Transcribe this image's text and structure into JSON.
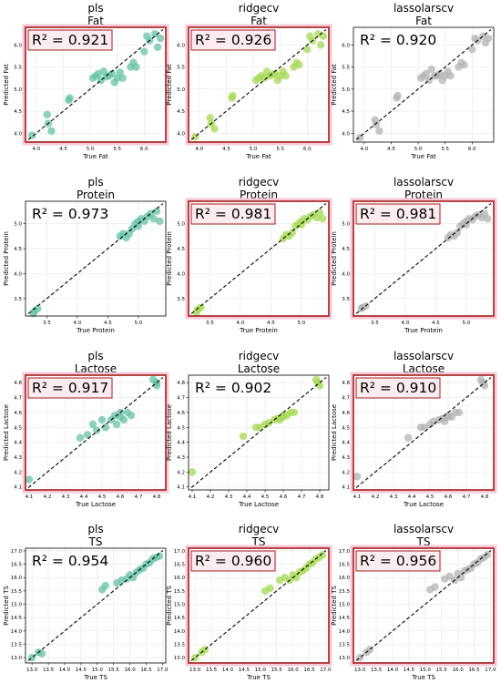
{
  "chart_data": [
    {
      "model": "pls",
      "target": "Fat",
      "type": "scatter",
      "xlabel": "True Fat",
      "ylabel": "Predicted Fat",
      "xlim": [
        3.8,
        6.4
      ],
      "ylim": [
        3.8,
        6.4
      ],
      "xticks": [
        4.0,
        4.5,
        5.0,
        5.5,
        6.0
      ],
      "yticks": [
        4.0,
        4.5,
        5.0,
        5.5,
        6.0
      ],
      "r2_label": "R² = 0.921",
      "highlighted": true,
      "color": "#66c2a5",
      "points": [
        [
          3.92,
          3.95
        ],
        [
          4.2,
          4.42
        ],
        [
          4.22,
          4.22
        ],
        [
          4.28,
          4.05
        ],
        [
          4.6,
          4.75
        ],
        [
          4.62,
          4.8
        ],
        [
          5.05,
          5.25
        ],
        [
          5.1,
          5.3
        ],
        [
          5.15,
          5.35
        ],
        [
          5.2,
          5.2
        ],
        [
          5.25,
          5.4
        ],
        [
          5.3,
          5.28
        ],
        [
          5.35,
          5.3
        ],
        [
          5.4,
          5.35
        ],
        [
          5.45,
          5.15
        ],
        [
          5.5,
          5.25
        ],
        [
          5.55,
          5.38
        ],
        [
          5.6,
          5.25
        ],
        [
          5.75,
          5.5
        ],
        [
          5.8,
          5.6
        ],
        [
          5.85,
          5.5
        ],
        [
          6.0,
          5.85
        ],
        [
          6.05,
          6.2
        ],
        [
          6.1,
          6.1
        ],
        [
          6.2,
          6.25
        ],
        [
          6.25,
          5.95
        ],
        [
          6.3,
          6.15
        ]
      ]
    },
    {
      "model": "ridgecv",
      "target": "Fat",
      "type": "scatter",
      "xlabel": "True Fat",
      "ylabel": "Predicted Fat",
      "xlim": [
        3.8,
        6.4
      ],
      "ylim": [
        3.8,
        6.4
      ],
      "xticks": [
        4.0,
        4.5,
        5.0,
        5.5,
        6.0
      ],
      "yticks": [
        4.0,
        4.5,
        5.0,
        5.5,
        6.0
      ],
      "r2_label": "R² = 0.926",
      "highlighted": true,
      "color": "#a6d854",
      "points": [
        [
          3.92,
          3.92
        ],
        [
          4.2,
          4.35
        ],
        [
          4.22,
          4.22
        ],
        [
          4.28,
          4.1
        ],
        [
          4.6,
          4.8
        ],
        [
          4.62,
          4.85
        ],
        [
          5.05,
          5.2
        ],
        [
          5.1,
          5.25
        ],
        [
          5.15,
          5.3
        ],
        [
          5.2,
          5.25
        ],
        [
          5.25,
          5.4
        ],
        [
          5.3,
          5.3
        ],
        [
          5.35,
          5.32
        ],
        [
          5.4,
          5.35
        ],
        [
          5.45,
          5.2
        ],
        [
          5.5,
          5.3
        ],
        [
          5.55,
          5.4
        ],
        [
          5.6,
          5.3
        ],
        [
          5.75,
          5.5
        ],
        [
          5.8,
          5.6
        ],
        [
          5.85,
          5.55
        ],
        [
          6.0,
          5.9
        ],
        [
          6.05,
          6.2
        ],
        [
          6.1,
          6.1
        ],
        [
          6.2,
          6.25
        ],
        [
          6.25,
          6.0
        ],
        [
          6.3,
          6.2
        ]
      ]
    },
    {
      "model": "lassolarscv",
      "target": "Fat",
      "type": "scatter",
      "xlabel": "True Fat",
      "ylabel": "Predicted Fat",
      "xlim": [
        3.8,
        6.4
      ],
      "ylim": [
        3.8,
        6.4
      ],
      "xticks": [
        4.0,
        4.5,
        5.0,
        5.5,
        6.0
      ],
      "yticks": [
        4.0,
        4.5,
        5.0,
        5.5,
        6.0
      ],
      "r2_label": "R² = 0.920",
      "highlighted": false,
      "color": "#b3b3b3",
      "points": [
        [
          3.92,
          3.9
        ],
        [
          4.2,
          4.3
        ],
        [
          4.22,
          4.2
        ],
        [
          4.28,
          4.05
        ],
        [
          4.6,
          4.8
        ],
        [
          4.62,
          4.85
        ],
        [
          5.05,
          5.25
        ],
        [
          5.1,
          5.3
        ],
        [
          5.15,
          5.35
        ],
        [
          5.2,
          5.2
        ],
        [
          5.25,
          5.45
        ],
        [
          5.3,
          5.3
        ],
        [
          5.35,
          5.3
        ],
        [
          5.4,
          5.35
        ],
        [
          5.45,
          5.2
        ],
        [
          5.5,
          5.3
        ],
        [
          5.55,
          5.4
        ],
        [
          5.6,
          5.3
        ],
        [
          5.75,
          5.5
        ],
        [
          5.8,
          5.6
        ],
        [
          5.85,
          5.55
        ],
        [
          6.0,
          5.9
        ],
        [
          6.05,
          6.15
        ],
        [
          6.1,
          6.1
        ],
        [
          6.2,
          6.2
        ],
        [
          6.25,
          6.05
        ],
        [
          6.3,
          6.15
        ]
      ]
    },
    {
      "model": "pls",
      "target": "Protein",
      "type": "scatter",
      "xlabel": "True Protein",
      "ylabel": "Predicted Protein",
      "xlim": [
        3.15,
        5.45
      ],
      "ylim": [
        3.15,
        5.45
      ],
      "xticks": [
        3.5,
        4.0,
        4.5,
        5.0
      ],
      "yticks": [
        3.5,
        4.0,
        4.5,
        5.0
      ],
      "r2_label": "R² = 0.973",
      "highlighted": false,
      "color": "#66c2a5",
      "points": [
        [
          3.28,
          3.2
        ],
        [
          3.3,
          3.25
        ],
        [
          3.35,
          3.3
        ],
        [
          4.7,
          4.75
        ],
        [
          4.75,
          4.8
        ],
        [
          4.8,
          4.72
        ],
        [
          4.85,
          4.8
        ],
        [
          4.9,
          4.9
        ],
        [
          4.95,
          5.0
        ],
        [
          5.0,
          5.05
        ],
        [
          5.0,
          4.95
        ],
        [
          5.05,
          5.1
        ],
        [
          5.1,
          5.05
        ],
        [
          5.15,
          5.15
        ],
        [
          5.2,
          5.2
        ],
        [
          5.25,
          5.1
        ],
        [
          5.3,
          5.25
        ],
        [
          5.35,
          5.05
        ]
      ]
    },
    {
      "model": "ridgecv",
      "target": "Protein",
      "type": "scatter",
      "xlabel": "True Protein",
      "ylabel": "Predicted Protein",
      "xlim": [
        3.15,
        5.45
      ],
      "ylim": [
        3.15,
        5.45
      ],
      "xticks": [
        3.5,
        4.0,
        4.5,
        5.0
      ],
      "yticks": [
        3.5,
        4.0,
        4.5,
        5.0
      ],
      "r2_label": "R² = 0.981",
      "highlighted": true,
      "color": "#a6d854",
      "points": [
        [
          3.28,
          3.22
        ],
        [
          3.3,
          3.28
        ],
        [
          3.35,
          3.32
        ],
        [
          4.7,
          4.7
        ],
        [
          4.75,
          4.78
        ],
        [
          4.8,
          4.75
        ],
        [
          4.85,
          4.82
        ],
        [
          4.9,
          4.95
        ],
        [
          4.95,
          5.0
        ],
        [
          5.0,
          5.05
        ],
        [
          5.0,
          4.98
        ],
        [
          5.05,
          5.1
        ],
        [
          5.1,
          5.08
        ],
        [
          5.15,
          5.15
        ],
        [
          5.2,
          5.18
        ],
        [
          5.25,
          5.12
        ],
        [
          5.3,
          5.22
        ],
        [
          5.35,
          5.1
        ]
      ]
    },
    {
      "model": "lassolarscv",
      "target": "Protein",
      "type": "scatter",
      "xlabel": "True Protein",
      "ylabel": "Predicted Protein",
      "xlim": [
        3.15,
        5.45
      ],
      "ylim": [
        3.15,
        5.45
      ],
      "xticks": [
        3.5,
        4.0,
        4.5,
        5.0
      ],
      "yticks": [
        3.5,
        4.0,
        4.5,
        5.0
      ],
      "r2_label": "R² = 0.981",
      "highlighted": true,
      "color": "#b3b3b3",
      "points": [
        [
          3.28,
          3.3
        ],
        [
          3.3,
          3.32
        ],
        [
          3.35,
          3.35
        ],
        [
          4.7,
          4.72
        ],
        [
          4.75,
          4.78
        ],
        [
          4.8,
          4.75
        ],
        [
          4.85,
          4.82
        ],
        [
          4.9,
          4.95
        ],
        [
          4.95,
          5.0
        ],
        [
          5.0,
          5.05
        ],
        [
          5.0,
          4.98
        ],
        [
          5.05,
          5.1
        ],
        [
          5.1,
          5.08
        ],
        [
          5.15,
          5.15
        ],
        [
          5.2,
          5.18
        ],
        [
          5.25,
          5.12
        ],
        [
          5.3,
          5.2
        ],
        [
          5.35,
          5.1
        ]
      ]
    },
    {
      "model": "pls",
      "target": "Lactose",
      "type": "scatter",
      "xlabel": "True Lactose",
      "ylabel": "Predicted Lactose",
      "xlim": [
        4.08,
        4.85
      ],
      "ylim": [
        4.08,
        4.85
      ],
      "xticks": [
        4.1,
        4.2,
        4.3,
        4.4,
        4.5,
        4.6,
        4.7,
        4.8
      ],
      "yticks": [
        4.1,
        4.2,
        4.3,
        4.4,
        4.5,
        4.6,
        4.7,
        4.8
      ],
      "r2_label": "R² = 0.917",
      "highlighted": true,
      "color": "#66c2a5",
      "points": [
        [
          4.1,
          4.15
        ],
        [
          4.38,
          4.43
        ],
        [
          4.42,
          4.45
        ],
        [
          4.45,
          4.52
        ],
        [
          4.47,
          4.48
        ],
        [
          4.5,
          4.55
        ],
        [
          4.52,
          4.5
        ],
        [
          4.55,
          4.55
        ],
        [
          4.57,
          4.58
        ],
        [
          4.58,
          4.52
        ],
        [
          4.6,
          4.57
        ],
        [
          4.6,
          4.6
        ],
        [
          4.62,
          4.55
        ],
        [
          4.64,
          4.6
        ],
        [
          4.66,
          4.58
        ],
        [
          4.78,
          4.82
        ],
        [
          4.8,
          4.8
        ],
        [
          4.8,
          4.78
        ]
      ]
    },
    {
      "model": "ridgecv",
      "target": "Lactose",
      "type": "scatter",
      "xlabel": "True Lactose",
      "ylabel": "Predicted Lactose",
      "xlim": [
        4.08,
        4.85
      ],
      "ylim": [
        4.08,
        4.85
      ],
      "xticks": [
        4.1,
        4.2,
        4.3,
        4.4,
        4.5,
        4.6,
        4.7,
        4.8
      ],
      "yticks": [
        4.1,
        4.2,
        4.3,
        4.4,
        4.5,
        4.6,
        4.7,
        4.8
      ],
      "r2_label": "R² = 0.902",
      "highlighted": false,
      "color": "#a6d854",
      "points": [
        [
          4.1,
          4.2
        ],
        [
          4.38,
          4.44
        ],
        [
          4.45,
          4.5
        ],
        [
          4.47,
          4.5
        ],
        [
          4.5,
          4.52
        ],
        [
          4.52,
          4.53
        ],
        [
          4.55,
          4.55
        ],
        [
          4.57,
          4.56
        ],
        [
          4.58,
          4.55
        ],
        [
          4.6,
          4.58
        ],
        [
          4.6,
          4.57
        ],
        [
          4.62,
          4.58
        ],
        [
          4.64,
          4.6
        ],
        [
          4.66,
          4.6
        ],
        [
          4.78,
          4.82
        ],
        [
          4.79,
          4.8
        ],
        [
          4.8,
          4.78
        ]
      ]
    },
    {
      "model": "lassolarscv",
      "target": "Lactose",
      "type": "scatter",
      "xlabel": "True Lactose",
      "ylabel": "Predicted Lactose",
      "xlim": [
        4.08,
        4.85
      ],
      "ylim": [
        4.08,
        4.85
      ],
      "xticks": [
        4.1,
        4.2,
        4.3,
        4.4,
        4.5,
        4.6,
        4.7,
        4.8
      ],
      "yticks": [
        4.1,
        4.2,
        4.3,
        4.4,
        4.5,
        4.6,
        4.7,
        4.8
      ],
      "r2_label": "R² = 0.910",
      "highlighted": true,
      "color": "#b3b3b3",
      "points": [
        [
          4.1,
          4.17
        ],
        [
          4.38,
          4.43
        ],
        [
          4.45,
          4.5
        ],
        [
          4.47,
          4.5
        ],
        [
          4.5,
          4.52
        ],
        [
          4.52,
          4.54
        ],
        [
          4.55,
          4.55
        ],
        [
          4.57,
          4.56
        ],
        [
          4.58,
          4.54
        ],
        [
          4.6,
          4.58
        ],
        [
          4.6,
          4.57
        ],
        [
          4.62,
          4.57
        ],
        [
          4.64,
          4.6
        ],
        [
          4.66,
          4.6
        ],
        [
          4.78,
          4.82
        ],
        [
          4.79,
          4.8
        ],
        [
          4.8,
          4.78
        ]
      ]
    },
    {
      "model": "pls",
      "target": "TS",
      "type": "scatter",
      "xlabel": "True TS",
      "ylabel": "Predicted TS",
      "xlim": [
        12.8,
        17.1
      ],
      "ylim": [
        12.8,
        17.1
      ],
      "xticks": [
        13.0,
        13.5,
        14.0,
        14.5,
        15.0,
        15.5,
        16.0,
        16.5,
        17.0
      ],
      "yticks": [
        13.0,
        13.5,
        14.0,
        14.5,
        15.0,
        15.5,
        16.0,
        16.5,
        17.0
      ],
      "r2_label": "R² = 0.954",
      "highlighted": false,
      "color": "#66c2a5",
      "points": [
        [
          13.0,
          13.0
        ],
        [
          13.2,
          13.2
        ],
        [
          13.3,
          13.15
        ],
        [
          15.15,
          15.55
        ],
        [
          15.25,
          15.7
        ],
        [
          15.6,
          15.8
        ],
        [
          15.75,
          15.9
        ],
        [
          15.9,
          15.95
        ],
        [
          16.0,
          16.1
        ],
        [
          16.1,
          16.0
        ],
        [
          16.2,
          16.2
        ],
        [
          16.3,
          16.3
        ],
        [
          16.4,
          16.35
        ],
        [
          16.5,
          16.5
        ],
        [
          16.6,
          16.55
        ],
        [
          16.7,
          16.7
        ],
        [
          16.8,
          16.75
        ],
        [
          16.9,
          16.8
        ]
      ]
    },
    {
      "model": "ridgecv",
      "target": "TS",
      "type": "scatter",
      "xlabel": "True TS",
      "ylabel": "Predicted TS",
      "xlim": [
        12.8,
        17.1
      ],
      "ylim": [
        12.8,
        17.1
      ],
      "xticks": [
        13.0,
        13.5,
        14.0,
        14.5,
        15.0,
        15.5,
        16.0,
        16.5,
        17.0
      ],
      "yticks": [
        13.0,
        13.5,
        14.0,
        14.5,
        15.0,
        15.5,
        16.0,
        16.5,
        17.0
      ],
      "r2_label": "R² = 0.960",
      "highlighted": true,
      "color": "#a6d854",
      "points": [
        [
          13.0,
          13.0
        ],
        [
          13.2,
          13.2
        ],
        [
          13.3,
          13.3
        ],
        [
          15.15,
          15.5
        ],
        [
          15.3,
          15.6
        ],
        [
          15.6,
          15.9
        ],
        [
          15.75,
          16.0
        ],
        [
          15.9,
          15.9
        ],
        [
          16.0,
          16.1
        ],
        [
          16.1,
          16.0
        ],
        [
          16.2,
          16.2
        ],
        [
          16.3,
          16.25
        ],
        [
          16.4,
          16.35
        ],
        [
          16.5,
          16.5
        ],
        [
          16.6,
          16.55
        ],
        [
          16.7,
          16.7
        ],
        [
          16.8,
          16.75
        ],
        [
          16.9,
          16.85
        ]
      ]
    },
    {
      "model": "lassolarscv",
      "target": "TS",
      "type": "scatter",
      "xlabel": "True TS",
      "ylabel": "Predicted TS",
      "xlim": [
        12.8,
        17.1
      ],
      "ylim": [
        12.8,
        17.1
      ],
      "xticks": [
        13.0,
        13.5,
        14.0,
        14.5,
        15.0,
        15.5,
        16.0,
        16.5,
        17.0
      ],
      "yticks": [
        13.0,
        13.5,
        14.0,
        14.5,
        15.0,
        15.5,
        16.0,
        16.5,
        17.0
      ],
      "r2_label": "R² = 0.956",
      "highlighted": true,
      "color": "#b3b3b3",
      "points": [
        [
          13.0,
          13.0
        ],
        [
          13.2,
          13.2
        ],
        [
          13.3,
          13.3
        ],
        [
          15.15,
          15.55
        ],
        [
          15.3,
          15.65
        ],
        [
          15.6,
          15.95
        ],
        [
          15.75,
          16.05
        ],
        [
          15.9,
          15.9
        ],
        [
          16.0,
          16.15
        ],
        [
          16.1,
          16.0
        ],
        [
          16.2,
          16.25
        ],
        [
          16.3,
          16.3
        ],
        [
          16.4,
          16.35
        ],
        [
          16.5,
          16.5
        ],
        [
          16.6,
          16.55
        ],
        [
          16.7,
          16.7
        ],
        [
          16.8,
          16.75
        ],
        [
          16.9,
          16.85
        ]
      ]
    }
  ]
}
